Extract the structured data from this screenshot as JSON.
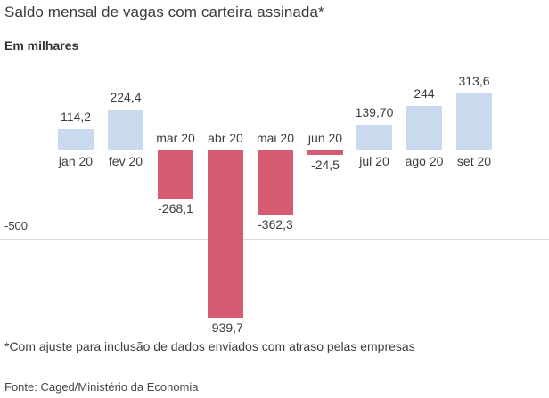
{
  "header": {
    "title": "Saldo mensal de vagas com carteira assinada*",
    "subtitle": "Em milhares"
  },
  "chart_data": {
    "type": "bar",
    "title": "Saldo mensal de vagas com carteira assinada*",
    "subtitle": "Em milhares",
    "categories": [
      "jan 20",
      "fev 20",
      "mar 20",
      "abr 20",
      "mai 20",
      "jun 20",
      "jul 20",
      "ago 20",
      "set 20"
    ],
    "values": [
      114.2,
      224.4,
      -268.1,
      -939.7,
      -362.3,
      -24.5,
      139.7,
      244,
      313.6
    ],
    "value_labels": [
      "114,2",
      "224,4",
      "-268,1",
      "-939,7",
      "-362,3",
      "-24,5",
      "139,70",
      "244",
      "313,6"
    ],
    "xlabel": "",
    "ylabel": "Em milhares",
    "ylim": [
      -1000,
      350
    ],
    "y_ticks": [
      {
        "value": -500,
        "label": "-500"
      }
    ],
    "grid": "single horizontal gridline at -500, zero baseline shown",
    "legend": "none",
    "colors": {
      "positive_bar": "#c9d9ee",
      "negative_bar": "#d45b70",
      "baseline": "#9e9e9e",
      "gridline": "#dcdcdc"
    }
  },
  "footer": {
    "footnote": "*Com ajuste para inclusão de dados enviados com atraso pelas empresas",
    "source": "Fonte: Caged/Ministério da Economia"
  }
}
